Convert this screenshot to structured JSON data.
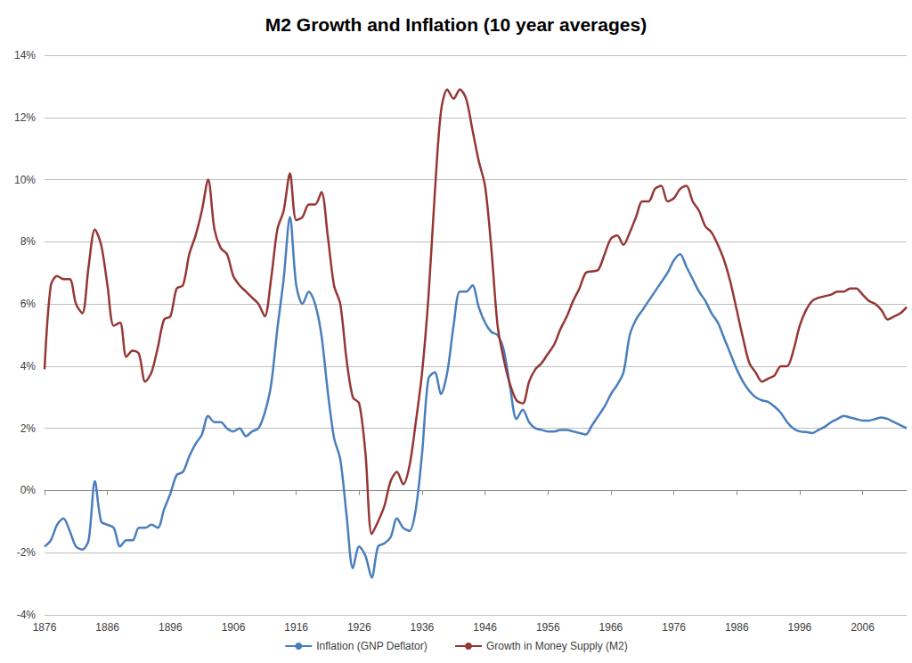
{
  "chart_data": {
    "type": "line",
    "title": "M2 Growth and Inflation (10 year averages)",
    "x": [
      1876,
      1877,
      1878,
      1879,
      1880,
      1881,
      1882,
      1883,
      1884,
      1885,
      1886,
      1887,
      1888,
      1889,
      1890,
      1891,
      1892,
      1893,
      1894,
      1895,
      1896,
      1897,
      1898,
      1899,
      1900,
      1901,
      1902,
      1903,
      1904,
      1905,
      1906,
      1907,
      1908,
      1909,
      1910,
      1911,
      1912,
      1913,
      1914,
      1915,
      1916,
      1917,
      1918,
      1919,
      1920,
      1921,
      1922,
      1923,
      1924,
      1925,
      1926,
      1927,
      1928,
      1929,
      1930,
      1931,
      1932,
      1933,
      1934,
      1935,
      1936,
      1937,
      1938,
      1939,
      1940,
      1941,
      1942,
      1943,
      1944,
      1945,
      1946,
      1947,
      1948,
      1949,
      1950,
      1951,
      1952,
      1953,
      1954,
      1955,
      1956,
      1957,
      1958,
      1959,
      1960,
      1961,
      1962,
      1963,
      1964,
      1965,
      1966,
      1967,
      1968,
      1969,
      1970,
      1971,
      1972,
      1973,
      1974,
      1975,
      1976,
      1977,
      1978,
      1979,
      1980,
      1981,
      1982,
      1983,
      1984,
      1985,
      1986,
      1987,
      1988,
      1989,
      1990,
      1991,
      1992,
      1993,
      1994,
      1995,
      1996,
      1997,
      1998,
      1999,
      2000,
      2001,
      2002,
      2003,
      2004,
      2005,
      2006,
      2007,
      2008,
      2009,
      2010,
      2011,
      2012,
      2013
    ],
    "series": [
      {
        "name": "Inflation (GNP Deflator)",
        "color": "#4a7ebb",
        "values": [
          -1.8,
          -1.6,
          -1.1,
          -0.9,
          -1.3,
          -1.8,
          -1.9,
          -1.6,
          0.3,
          -1.0,
          -1.1,
          -1.2,
          -1.8,
          -1.6,
          -1.6,
          -1.2,
          -1.2,
          -1.1,
          -1.2,
          -0.6,
          -0.1,
          0.5,
          0.6,
          1.1,
          1.5,
          1.8,
          2.4,
          2.2,
          2.2,
          2.0,
          1.9,
          2.0,
          1.75,
          1.9,
          2.0,
          2.5,
          3.4,
          5.2,
          6.8,
          8.8,
          6.6,
          6.0,
          6.4,
          6.0,
          5.0,
          3.2,
          1.7,
          1.0,
          -0.8,
          -2.5,
          -1.8,
          -2.1,
          -2.8,
          -1.8,
          -1.7,
          -1.5,
          -0.9,
          -1.2,
          -1.3,
          -0.6,
          1.2,
          3.6,
          3.8,
          3.1,
          3.8,
          5.3,
          6.4,
          6.4,
          6.6,
          5.9,
          5.4,
          5.1,
          5.0,
          4.5,
          3.3,
          2.3,
          2.6,
          2.2,
          2.0,
          1.95,
          1.9,
          1.9,
          1.95,
          1.95,
          1.9,
          1.85,
          1.8,
          2.1,
          2.4,
          2.7,
          3.1,
          3.4,
          3.8,
          5.0,
          5.5,
          5.8,
          6.1,
          6.4,
          6.7,
          7.0,
          7.4,
          7.6,
          7.2,
          6.8,
          6.4,
          6.1,
          5.7,
          5.4,
          4.9,
          4.4,
          3.9,
          3.5,
          3.2,
          3.0,
          2.9,
          2.85,
          2.7,
          2.5,
          2.2,
          2.0,
          1.9,
          1.88,
          1.85,
          1.95,
          2.05,
          2.2,
          2.3,
          2.4,
          2.35,
          2.3,
          2.25,
          2.25,
          2.3,
          2.35,
          2.3,
          2.2,
          2.1,
          2.0
        ]
      },
      {
        "name": "Growth in Money Supply (M2)",
        "color": "#953735",
        "values": [
          3.9,
          6.6,
          6.9,
          6.8,
          6.8,
          6.0,
          5.7,
          7.2,
          8.4,
          7.9,
          6.6,
          5.3,
          5.4,
          4.3,
          4.5,
          4.4,
          3.5,
          3.8,
          4.6,
          5.5,
          5.6,
          6.5,
          6.6,
          7.6,
          8.2,
          9.0,
          10.0,
          8.4,
          7.8,
          7.6,
          6.9,
          6.6,
          6.4,
          6.2,
          6.0,
          5.6,
          6.8,
          8.4,
          9.0,
          10.2,
          8.7,
          8.8,
          9.2,
          9.2,
          9.6,
          8.2,
          6.6,
          6.0,
          4.2,
          3.0,
          2.8,
          1.2,
          -1.4,
          -1.0,
          -0.5,
          0.3,
          0.6,
          0.2,
          0.8,
          2.2,
          3.8,
          6.2,
          9.5,
          12.2,
          12.9,
          12.6,
          12.9,
          12.6,
          11.6,
          10.6,
          9.8,
          7.8,
          5.3,
          4.2,
          3.4,
          2.9,
          2.8,
          3.5,
          3.9,
          4.1,
          4.4,
          4.7,
          5.2,
          5.6,
          6.1,
          6.5,
          7.0,
          7.05,
          7.1,
          7.6,
          8.1,
          8.2,
          7.9,
          8.3,
          8.8,
          9.3,
          9.3,
          9.7,
          9.8,
          9.3,
          9.4,
          9.7,
          9.8,
          9.3,
          9.0,
          8.5,
          8.3,
          7.9,
          7.4,
          6.7,
          5.8,
          4.9,
          4.1,
          3.8,
          3.5,
          3.6,
          3.7,
          4.0,
          4.0,
          4.5,
          5.3,
          5.8,
          6.1,
          6.2,
          6.25,
          6.3,
          6.4,
          6.4,
          6.5,
          6.5,
          6.3,
          6.1,
          6.0,
          5.8,
          5.5,
          5.6,
          5.7,
          5.9
        ]
      }
    ],
    "xlim": [
      1876,
      2013
    ],
    "xticks": [
      1876,
      1886,
      1896,
      1906,
      1916,
      1926,
      1936,
      1946,
      1956,
      1966,
      1976,
      1986,
      1996,
      2006
    ],
    "ylim": [
      -4,
      14
    ],
    "yticks": [
      {
        "value": -4,
        "label": "-4%"
      },
      {
        "value": -2,
        "label": "-2%"
      },
      {
        "value": 0,
        "label": "0%"
      },
      {
        "value": 2,
        "label": "2%"
      },
      {
        "value": 4,
        "label": "4%"
      },
      {
        "value": 6,
        "label": "6%"
      },
      {
        "value": 8,
        "label": "8%"
      },
      {
        "value": 10,
        "label": "10%"
      },
      {
        "value": 12,
        "label": "12%"
      },
      {
        "value": 14,
        "label": "14%"
      }
    ],
    "grid": true,
    "legend": "bottom"
  }
}
